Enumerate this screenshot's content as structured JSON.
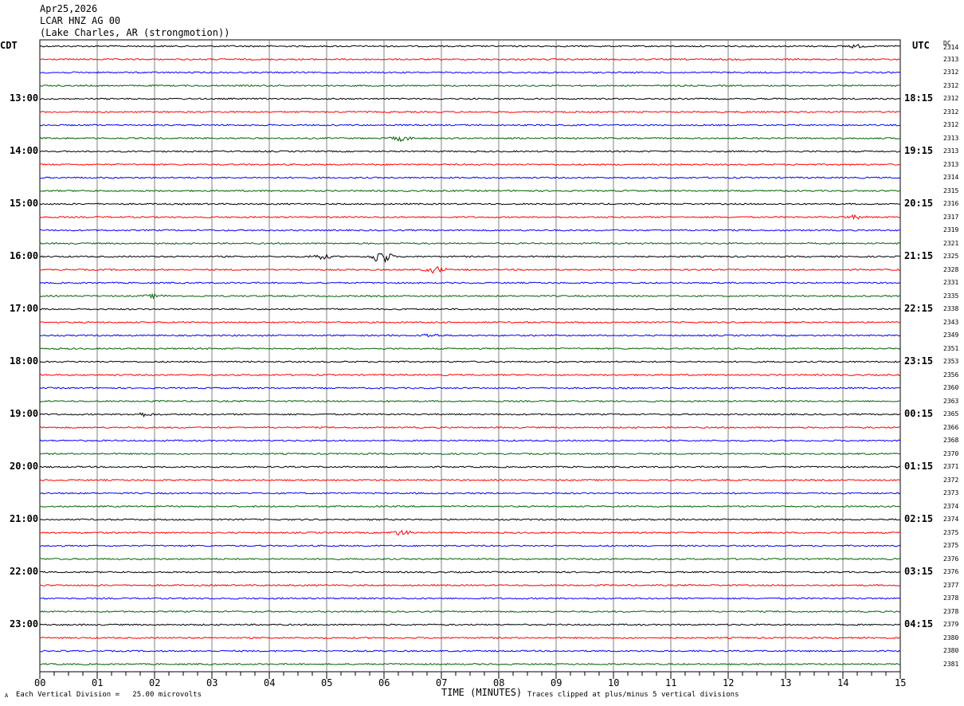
{
  "header": {
    "date": "Apr25,2026",
    "station": "LCAR HNZ AG 00",
    "location": "(Lake Charles, AR (strongmotion))"
  },
  "left_timezone": "CDT",
  "right_timezone": "UTC",
  "dc_label": "DC",
  "footer": {
    "vertical_division": "Each Vertical Division =   25.00 microvolts",
    "clipped_note": "Traces clipped at plus/minus 5 vertical divisions",
    "corner_mark": "A"
  },
  "colors": {
    "black": "#000000",
    "red": "#ff0000",
    "blue": "#0000ff",
    "green": "#006400",
    "grid": "#808080"
  },
  "chart_data": {
    "type": "line",
    "title": "LCAR HNZ AG 00",
    "xlabel": "TIME (MINUTES)",
    "x_ticks": [
      "00",
      "01",
      "02",
      "03",
      "04",
      "05",
      "06",
      "07",
      "08",
      "09",
      "10",
      "11",
      "12",
      "13",
      "14",
      "15"
    ],
    "xlim": [
      0,
      15
    ],
    "left_hour_labels": [
      "13:00",
      "14:00",
      "15:00",
      "16:00",
      "17:00",
      "18:00",
      "19:00",
      "20:00",
      "21:00",
      "22:00",
      "23:00"
    ],
    "right_hour_labels": [
      "18:15",
      "19:15",
      "20:15",
      "21:15",
      "22:15",
      "23:15",
      "00:15",
      "01:15",
      "02:15",
      "03:15",
      "04:15"
    ],
    "trace_color_cycle": [
      "black",
      "red",
      "blue",
      "green"
    ],
    "dc_offsets": [
      "2314",
      "2313",
      "2312",
      "2312",
      "2312",
      "2312",
      "2312",
      "2313",
      "2313",
      "2313",
      "2314",
      "2315",
      "2316",
      "2317",
      "2319",
      "2321",
      "2325",
      "2328",
      "2331",
      "2335",
      "2338",
      "2343",
      "2349",
      "2351",
      "2353",
      "2356",
      "2360",
      "2363",
      "2365",
      "2366",
      "2368",
      "2370",
      "2371",
      "2372",
      "2373",
      "2374",
      "2374",
      "2375",
      "2375",
      "2376",
      "2376",
      "2377",
      "2378",
      "2378",
      "2379",
      "2380",
      "2380",
      "2381"
    ],
    "events": [
      {
        "trace": 0,
        "minute": 14.2,
        "amp": 2
      },
      {
        "trace": 7,
        "minute": 6.3,
        "amp": 3
      },
      {
        "trace": 16,
        "minute": 5.95,
        "amp": 9
      },
      {
        "trace": 16,
        "minute": 4.9,
        "amp": 3
      },
      {
        "trace": 17,
        "minute": 6.9,
        "amp": 4
      },
      {
        "trace": 19,
        "minute": 2.0,
        "amp": 2
      },
      {
        "trace": 22,
        "minute": 6.8,
        "amp": 2
      },
      {
        "trace": 28,
        "minute": 1.8,
        "amp": 2
      },
      {
        "trace": 37,
        "minute": 6.3,
        "amp": 3
      },
      {
        "trace": 13,
        "minute": 14.2,
        "amp": 2
      }
    ]
  }
}
